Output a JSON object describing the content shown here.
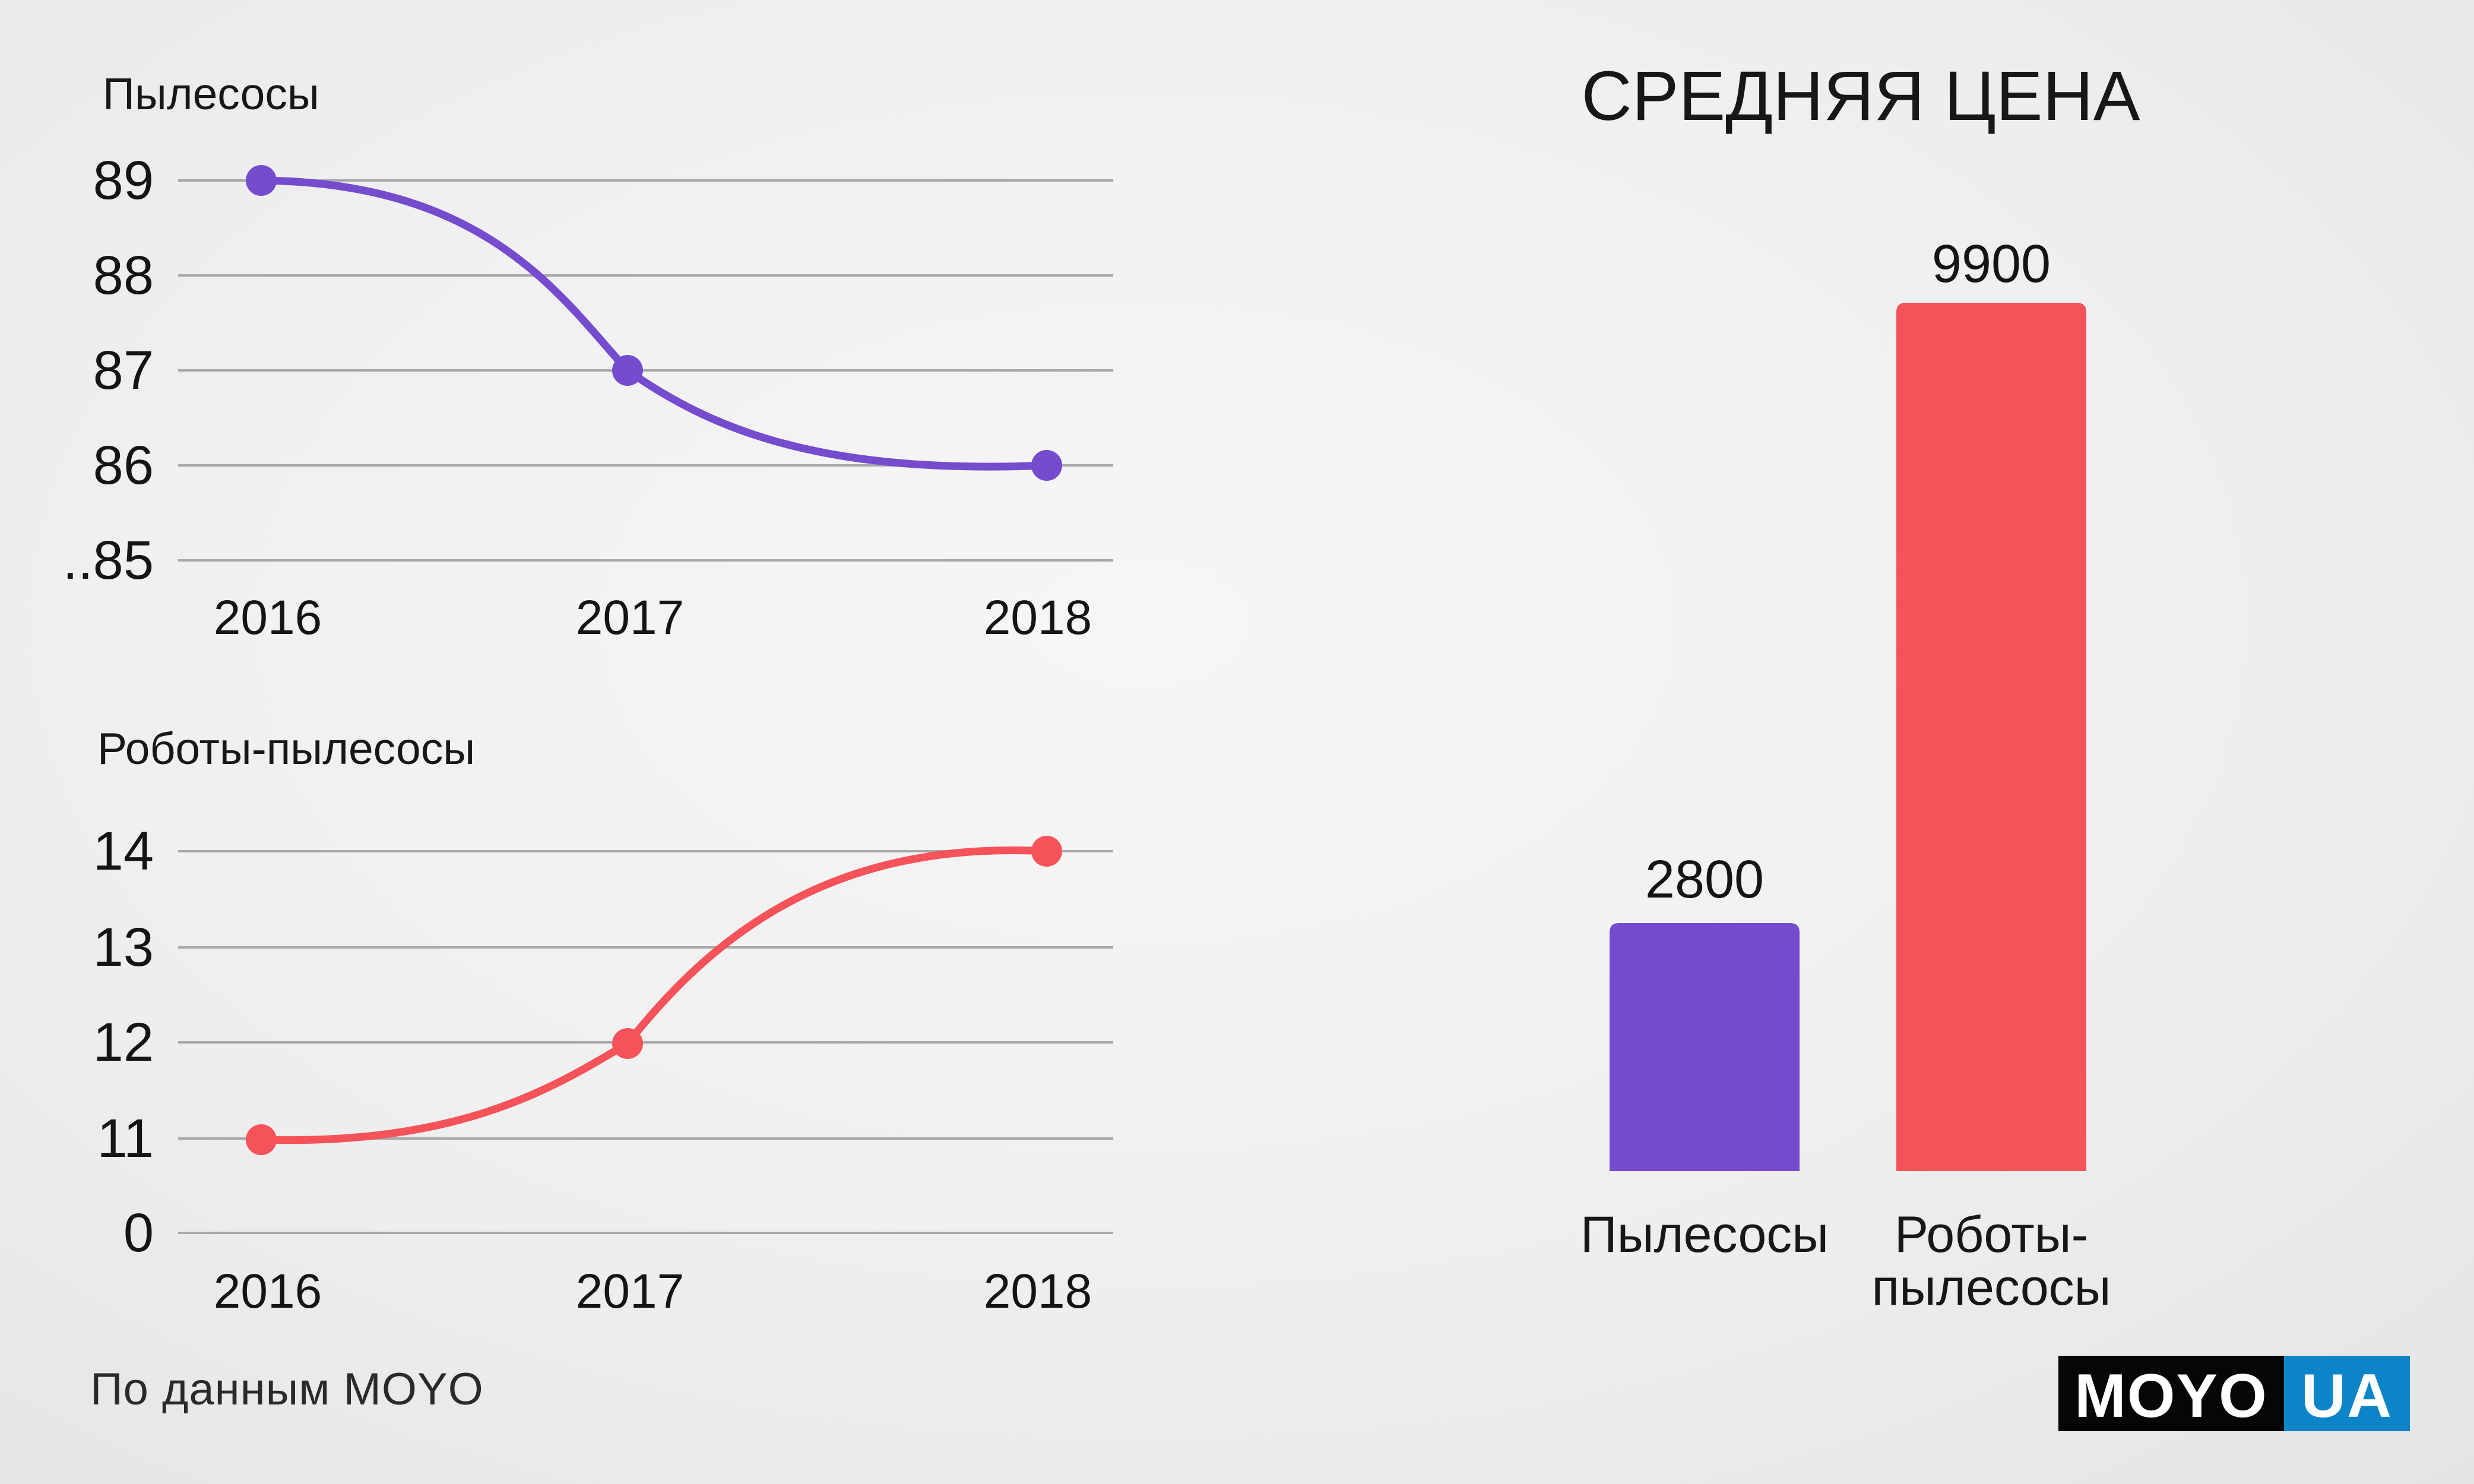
{
  "chart_data": [
    {
      "type": "line",
      "title": "Пылесосы",
      "x": [
        "2016",
        "2017",
        "2018"
      ],
      "values": [
        89,
        87,
        86
      ],
      "ytick_labels": [
        "89",
        "88",
        "87",
        "86",
        "..85"
      ],
      "ytick_values": [
        89,
        88,
        87,
        86,
        85
      ],
      "broken_axis": true,
      "grid": true,
      "legend": "none",
      "color": "#744ccd"
    },
    {
      "type": "line",
      "title": "Роботы-пылесосы",
      "x": [
        "2016",
        "2017",
        "2018"
      ],
      "values": [
        11,
        12,
        14
      ],
      "ytick_labels": [
        "14",
        "13",
        "12",
        "11",
        "0"
      ],
      "ytick_values": [
        14,
        13,
        12,
        11,
        0
      ],
      "broken_axis": true,
      "grid": true,
      "legend": "none",
      "color": "#f5525a"
    },
    {
      "type": "bar",
      "title": "СРЕДНЯЯ ЦЕНА",
      "categories": [
        "Пылесосы",
        "Роботы-\nпылесосы"
      ],
      "values": [
        2800,
        9900
      ],
      "data_labels": [
        "2800",
        "9900"
      ],
      "colors": [
        "#744ccd",
        "#f5525a"
      ],
      "ylim": [
        0,
        9900
      ],
      "grid": false,
      "legend": "none"
    }
  ],
  "source_note": "По данным MOYO",
  "logo": {
    "text_left": "MOYO",
    "text_right": "UA",
    "bg_left": "#060606",
    "bg_right": "#0b85c8",
    "text_color": "#ffffff"
  },
  "colors": {
    "text": "#1c1c1e",
    "grid": "#a8a8a8",
    "line_purple": "#744ccd",
    "line_red": "#f5525a",
    "background_center": "#f6f6f6",
    "background_edge": "#e1e1e1"
  }
}
